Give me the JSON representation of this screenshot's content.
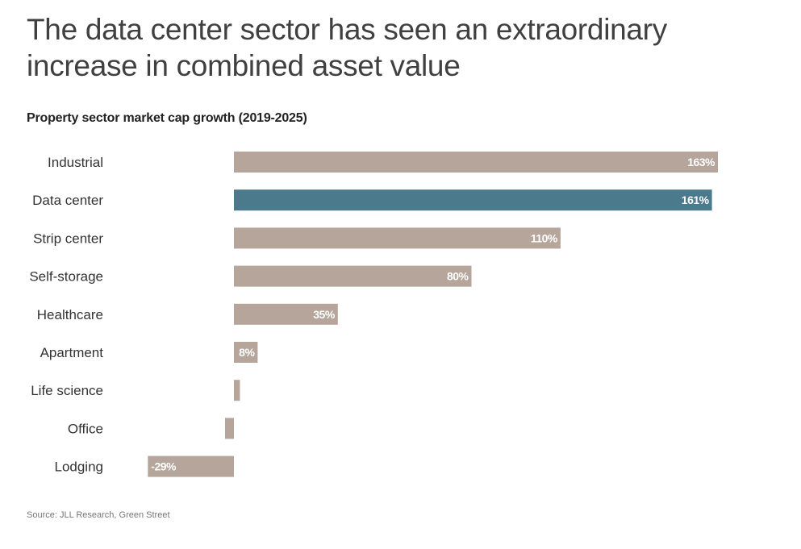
{
  "headline": "The data center sector has seen an extraordinary increase in combined asset value",
  "source": "Source: JLL Research, Green Street",
  "colors": {
    "default_bar": "#b5a59b",
    "highlight_bar": "#4a7a8c"
  },
  "chart_data": {
    "type": "bar",
    "orientation": "horizontal",
    "title": "Property sector market cap growth (2019-2025)",
    "xlabel": "",
    "ylabel": "",
    "unit": "%",
    "xlim": [
      -40,
      175
    ],
    "categories": [
      "Industrial",
      "Data center",
      "Strip center",
      "Self-storage",
      "Healthcare",
      "Apartment",
      "Life science",
      "Office",
      "Lodging"
    ],
    "values": [
      163,
      161,
      110,
      80,
      35,
      8,
      2,
      -3,
      -29
    ],
    "data_labels": [
      "163%",
      "161%",
      "110%",
      "80%",
      "35%",
      "8%",
      "",
      "",
      "-29%"
    ],
    "highlight": "Data center"
  }
}
